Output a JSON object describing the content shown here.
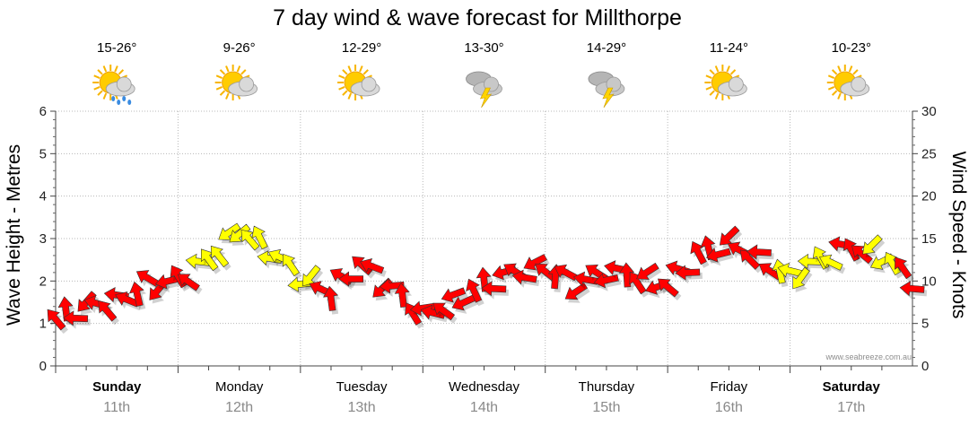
{
  "chart_data": {
    "type": "line",
    "title": "7 day wind & wave forecast for Millthorpe",
    "ylabel_left": "Wave Height - Metres",
    "ylabel_right": "Wind Speed - Knots",
    "ylim_left": [
      0,
      6
    ],
    "yticks_left": [
      "0",
      "1",
      "2",
      "3",
      "4",
      "5",
      "6"
    ],
    "ylim_right": [
      0,
      30
    ],
    "yticks_right": [
      "0",
      "5",
      "10",
      "15",
      "20",
      "25",
      "30"
    ],
    "watermark": "www.seabreeze.com.au",
    "days": [
      {
        "name": "Sunday",
        "date": "11th",
        "temp": "15-26°",
        "icon": "sun-cloud-rain-icon",
        "bold": true
      },
      {
        "name": "Monday",
        "date": "12th",
        "temp": "9-26°",
        "icon": "sun-cloud-icon",
        "bold": false
      },
      {
        "name": "Tuesday",
        "date": "13th",
        "temp": "12-29°",
        "icon": "sun-cloud-icon",
        "bold": false
      },
      {
        "name": "Wednesday",
        "date": "14th",
        "temp": "13-30°",
        "icon": "storm-cloud-icon",
        "bold": false
      },
      {
        "name": "Thursday",
        "date": "15th",
        "temp": "14-29°",
        "icon": "storm-cloud-icon",
        "bold": false
      },
      {
        "name": "Friday",
        "date": "16th",
        "temp": "11-24°",
        "icon": "sun-cloud-icon",
        "bold": false
      },
      {
        "name": "Saturday",
        "date": "17th",
        "temp": "10-23°",
        "icon": "sun-cloud-icon",
        "bold": true
      }
    ],
    "wind_series": {
      "name": "Wind speed (knots)",
      "x_days": [
        0.0,
        0.25,
        0.5,
        0.75,
        1.0,
        1.25,
        1.5,
        1.75,
        2.0,
        2.25,
        2.5,
        2.75,
        3.0,
        3.25,
        3.5,
        3.75,
        4.0,
        4.25,
        4.5,
        4.75,
        5.0,
        5.25,
        5.5,
        5.75,
        6.0,
        6.25,
        6.5,
        6.75,
        7.0
      ],
      "values": [
        5.5,
        7.0,
        7.5,
        9.5,
        10.0,
        12.5,
        16.0,
        13.5,
        10.5,
        8.5,
        12.0,
        9.0,
        6.0,
        7.5,
        9.5,
        11.0,
        11.5,
        9.5,
        11.0,
        10.5,
        9.5,
        13.0,
        14.5,
        12.5,
        10.5,
        12.5,
        14.0,
        13.0,
        10.0
      ],
      "colors": [
        "red",
        "red",
        "red",
        "red",
        "red",
        "yellow",
        "yellow",
        "yellow",
        "yellow",
        "red",
        "red",
        "red",
        "red",
        "red",
        "red",
        "red",
        "red",
        "red",
        "red",
        "red",
        "red",
        "red",
        "red",
        "red",
        "yellow",
        "yellow",
        "red",
        "yellow",
        "red"
      ]
    },
    "legend": {
      "red": "#ff0000",
      "yellow": "#ffff00"
    }
  }
}
